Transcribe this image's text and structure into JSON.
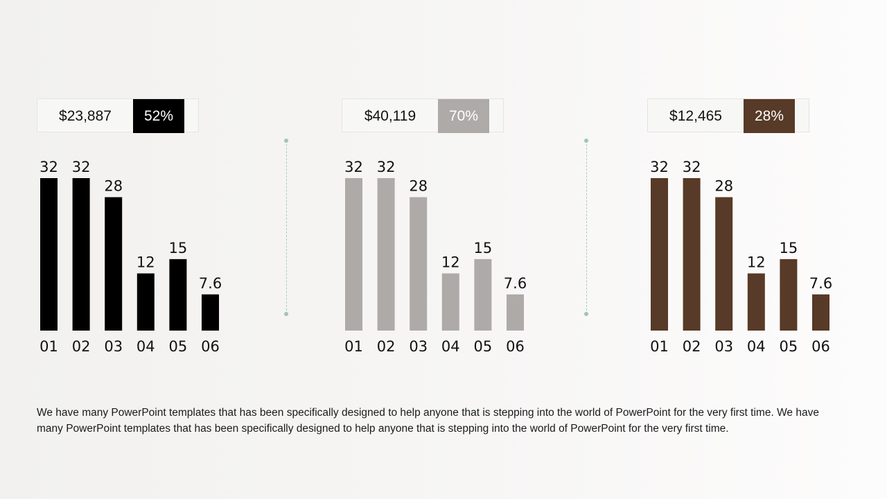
{
  "panels": [
    {
      "amount": "$23,887",
      "percent": "52%",
      "color": "#000000"
    },
    {
      "amount": "$40,119",
      "percent": "70%",
      "color": "#aeaaa8"
    },
    {
      "amount": "$12,465",
      "percent": "28%",
      "color": "#573a27"
    }
  ],
  "chart_data": [
    {
      "type": "bar",
      "categories": [
        "01",
        "02",
        "03",
        "04",
        "05",
        "06"
      ],
      "values": [
        32,
        32,
        28,
        12,
        15,
        7.6
      ],
      "value_labels": [
        "32",
        "32",
        "28",
        "12",
        "15",
        "7.6"
      ],
      "ylim": [
        0,
        32
      ],
      "grid": false
    },
    {
      "type": "bar",
      "categories": [
        "01",
        "02",
        "03",
        "04",
        "05",
        "06"
      ],
      "values": [
        32,
        32,
        28,
        12,
        15,
        7.6
      ],
      "value_labels": [
        "32",
        "32",
        "28",
        "12",
        "15",
        "7.6"
      ],
      "ylim": [
        0,
        32
      ],
      "grid": false
    },
    {
      "type": "bar",
      "categories": [
        "01",
        "02",
        "03",
        "04",
        "05",
        "06"
      ],
      "values": [
        32,
        32,
        28,
        12,
        15,
        7.6
      ],
      "value_labels": [
        "32",
        "32",
        "28",
        "12",
        "15",
        "7.6"
      ],
      "ylim": [
        0,
        32
      ],
      "grid": false
    }
  ],
  "caption": "We have many PowerPoint templates that has been specifically designed to help anyone that is stepping into the world of PowerPoint for the very first time. We have many PowerPoint templates that has been specifically designed to help anyone that is stepping into the world of PowerPoint for the very first time."
}
